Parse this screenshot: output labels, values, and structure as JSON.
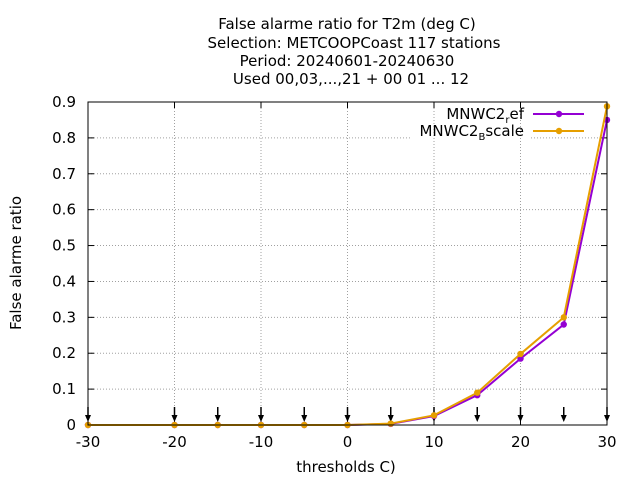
{
  "chart_data": {
    "type": "line",
    "title_lines": [
      "False alarme ratio  for T2m (deg C)",
      "Selection: METCOOPCoast    117 stations",
      "Period: 20240601-20240630",
      "Used 00,03,...,21 + 00 01 ... 12"
    ],
    "xlabel": "thresholds C)",
    "ylabel": "False alarme ratio",
    "xlim": [
      -30,
      30
    ],
    "ylim": [
      0,
      0.9
    ],
    "xticks": [
      -30,
      -20,
      -10,
      0,
      10,
      20,
      30
    ],
    "yticks": [
      0,
      0.1,
      0.2,
      0.3,
      0.4,
      0.5,
      0.6,
      0.7,
      0.8,
      0.9
    ],
    "x_tick_labels": [
      "-30",
      "-20",
      "-10",
      "0",
      "10",
      "20",
      "30"
    ],
    "y_tick_labels": [
      "0",
      "0.1",
      "0.2",
      "0.3",
      "0.4",
      "0.5",
      "0.6",
      "0.7",
      "0.8",
      "0.9"
    ],
    "grid": true,
    "legend_position": "top-right",
    "threshold_arrows": [
      -30,
      -20,
      -15,
      -10,
      -5,
      0,
      5,
      10,
      15,
      20,
      25,
      30
    ],
    "x": [
      -30,
      -20,
      -15,
      -10,
      -5,
      0,
      5,
      10,
      15,
      20,
      25,
      30
    ],
    "series": [
      {
        "name": "MNWC2_ref",
        "legend_main": "MNWC2",
        "legend_sub": "r",
        "legend_rest": "ef",
        "color": "#9400d3",
        "values": [
          0,
          0,
          0,
          0,
          0,
          0,
          0.003,
          0.025,
          0.083,
          0.185,
          0.28,
          0.85
        ]
      },
      {
        "name": "MNWC2_Bscale",
        "legend_main": "MNWC2",
        "legend_sub": "B",
        "legend_rest": "scale",
        "color": "#e69f00",
        "values": [
          0,
          0,
          0,
          0,
          0,
          0,
          0.004,
          0.027,
          0.09,
          0.198,
          0.3,
          0.888
        ]
      }
    ]
  }
}
